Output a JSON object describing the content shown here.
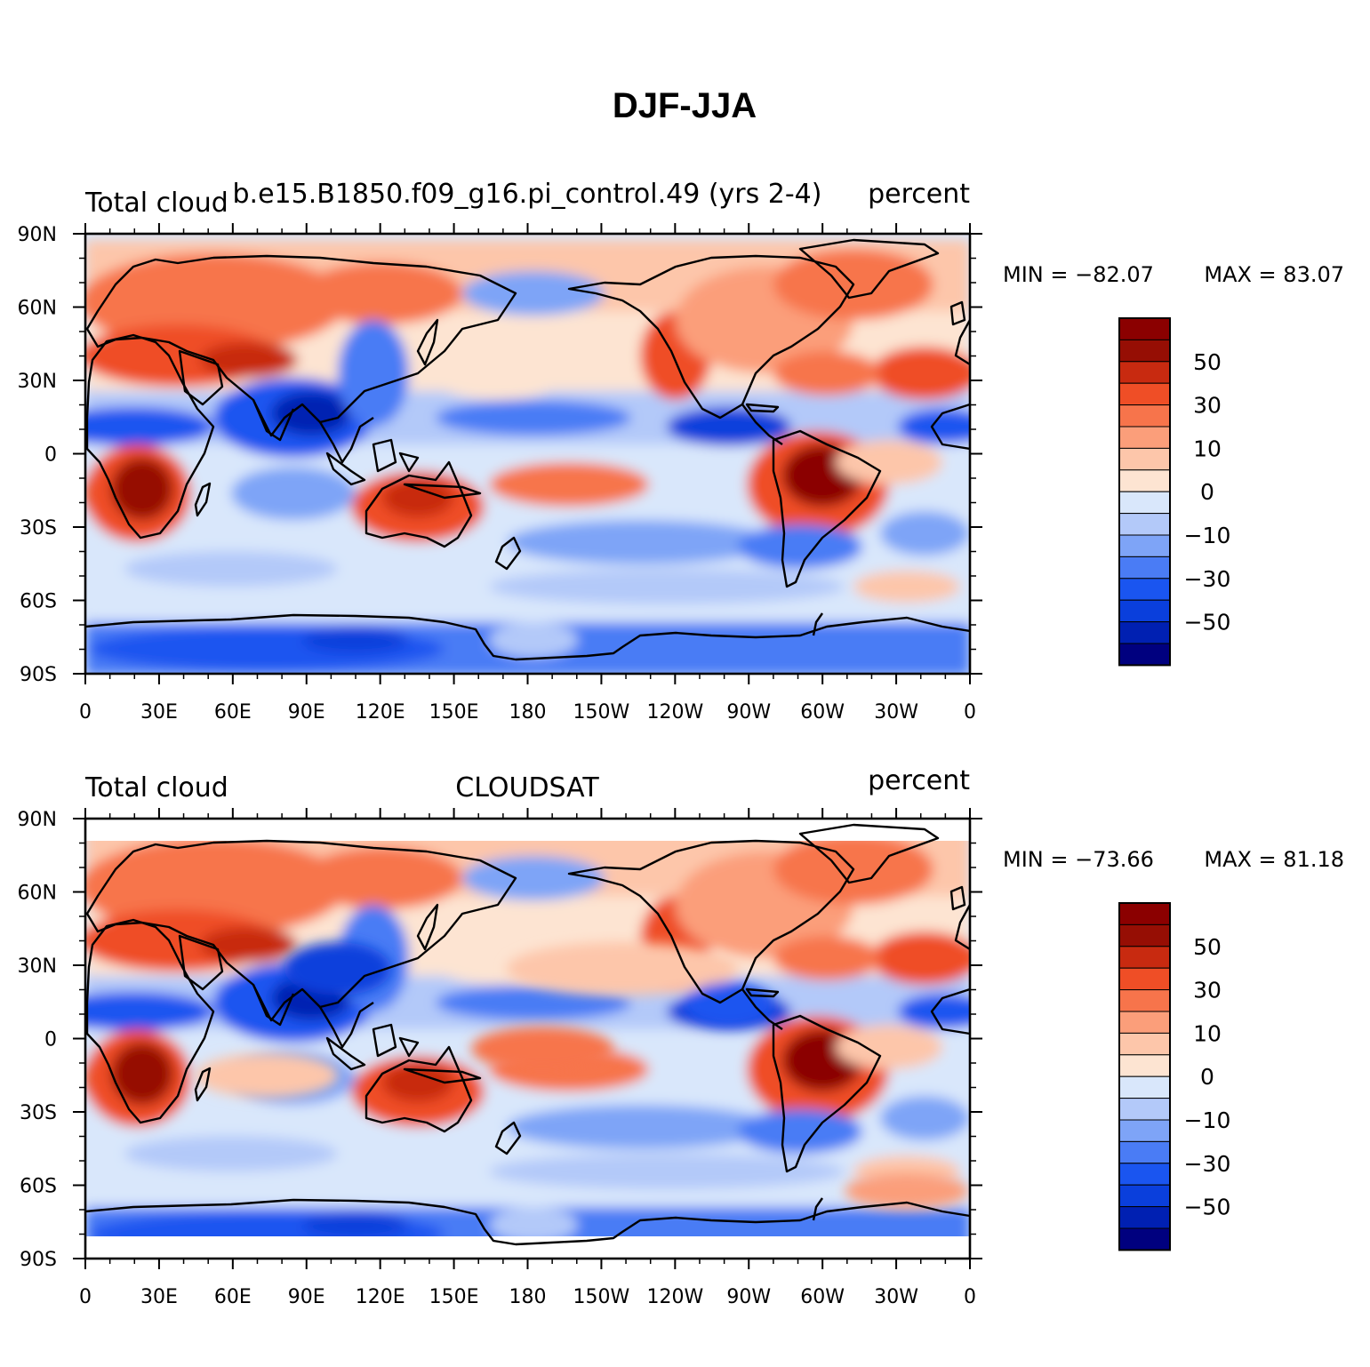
{
  "figure": {
    "title": "DJF-JJA"
  },
  "color_scale": {
    "levels": [
      -60,
      -50,
      -40,
      -30,
      -20,
      -10,
      -5,
      0,
      5,
      10,
      20,
      30,
      40,
      50,
      60
    ],
    "colors": [
      "#00007f",
      "#0020b2",
      "#0a3fdc",
      "#1a55f0",
      "#4a7cf5",
      "#7ea4f7",
      "#b3c9f9",
      "#d9e7fb",
      "#fde4d2",
      "#fdc6aa",
      "#fb9e7a",
      "#f7744b",
      "#ef4e26",
      "#c82a10",
      "#960e04",
      "#8b0000"
    ],
    "labeled_values": [
      "50",
      "30",
      "10",
      "0",
      "−10",
      "−30",
      "−50"
    ]
  },
  "axes": {
    "lon_ticks": [
      "0",
      "30E",
      "60E",
      "90E",
      "120E",
      "150E",
      "180",
      "150W",
      "120W",
      "90W",
      "60W",
      "30W",
      "0"
    ],
    "lat_ticks": [
      "90N",
      "60N",
      "30N",
      "0",
      "30S",
      "60S",
      "90S"
    ]
  },
  "panels": [
    {
      "left_label": "Total cloud",
      "center_label": "b.e15.B1850.f09_g16.pi_control.49 (yrs 2-4)",
      "right_label": "percent",
      "min_text": "MIN = −82.07",
      "max_text": "MAX =  83.07",
      "data_lat_range": [
        -90,
        90
      ]
    },
    {
      "left_label": "Total cloud",
      "center_label": "CLOUDSAT",
      "right_label": "percent",
      "min_text": "MIN = −73.66",
      "max_text": "MAX =  81.18",
      "data_lat_range": [
        -82,
        82
      ]
    }
  ]
}
